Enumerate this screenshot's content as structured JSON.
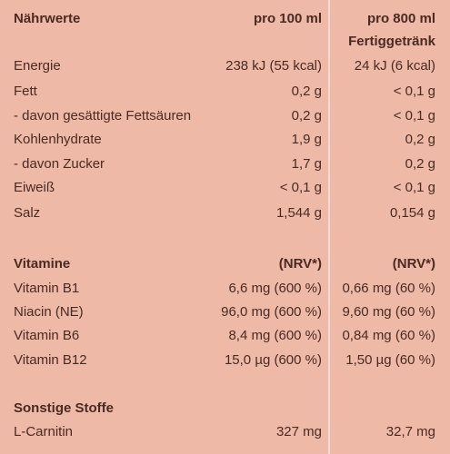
{
  "header": {
    "label": "Nährwerte",
    "col1": "pro 100 ml",
    "col2_line1": "pro 800 ml",
    "col2_line2": "Fertiggetränk"
  },
  "nutrients": [
    {
      "name": "Energie",
      "per100": "238 kJ (55 kcal)",
      "per800": "24 kJ (6 kcal)"
    },
    {
      "name": "Fett",
      "per100": "0,2 g",
      "per800": "< 0,1 g"
    },
    {
      "name": "- davon gesättigte Fettsäuren",
      "per100": "0,2 g",
      "per800": "< 0,1 g"
    },
    {
      "name": "Kohlenhydrate",
      "per100": "1,9 g",
      "per800": "0,2 g"
    },
    {
      "name": "- davon Zucker",
      "per100": "1,7 g",
      "per800": "0,2 g"
    },
    {
      "name": "Eiweiß",
      "per100": "< 0,1 g",
      "per800": "< 0,1 g"
    },
    {
      "name": "Salz",
      "per100": "1,544 g",
      "per800": "0,154 g"
    }
  ],
  "vitamins_header": {
    "label": "Vitamine",
    "col1": "(NRV*)",
    "col2": "(NRV*)"
  },
  "vitamins": [
    {
      "name": "Vitamin B1",
      "per100": "6,6 mg (600 %)",
      "per800": "0,66 mg (60 %)"
    },
    {
      "name": "Niacin (NE)",
      "per100": "96,0 mg (600 %)",
      "per800": "9,60 mg (60 %)"
    },
    {
      "name": "Vitamin B6",
      "per100": "8,4 mg (600 %)",
      "per800": "0,84 mg (60 %)"
    },
    {
      "name": "Vitamin B12",
      "per100": "15,0 µg (600 %)",
      "per800": "1,50  µg (60 %)"
    }
  ],
  "other_header": {
    "label": "Sonstige Stoffe"
  },
  "other": [
    {
      "name": "L-Carnitin",
      "per100": "327 mg",
      "per800": "32,7 mg"
    }
  ]
}
